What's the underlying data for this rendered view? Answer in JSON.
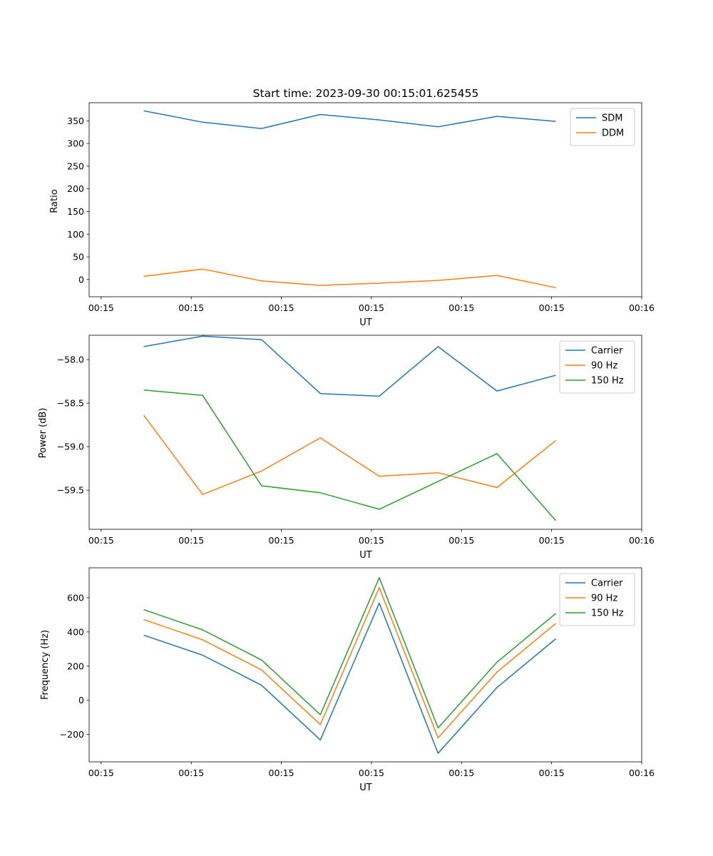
{
  "chart_data": [
    {
      "type": "line",
      "title": "Start time: 2023-09-30 00:15:01.625455",
      "xlabel": "UT",
      "ylabel": "Ratio",
      "xlim": [
        -0.2,
        9.0
      ],
      "ylim": [
        -38,
        390
      ],
      "x_ticks": [
        0,
        1.5,
        3,
        4.5,
        6,
        7.5,
        9
      ],
      "x_tick_labels": [
        "00:15",
        "00:15",
        "00:15",
        "00:15",
        "00:15",
        "00:15",
        "00:16"
      ],
      "y_ticks": [
        0,
        50,
        100,
        150,
        200,
        250,
        300,
        350
      ],
      "y_tick_labels": [
        "0",
        "50",
        "100",
        "150",
        "200",
        "250",
        "300",
        "350"
      ],
      "grid": false,
      "legend_position": "top-right",
      "x": [
        0.71,
        1.69,
        2.67,
        3.65,
        4.63,
        5.61,
        6.59,
        7.57
      ],
      "series": [
        {
          "name": "SDM",
          "color": "#1f77b4",
          "values": [
            372,
            347,
            333,
            364,
            352,
            337,
            360,
            349
          ]
        },
        {
          "name": "DDM",
          "color": "#ff7f0e",
          "values": [
            7,
            23,
            -3,
            -13,
            -8,
            -2,
            9,
            -18
          ]
        }
      ]
    },
    {
      "type": "line",
      "title": "",
      "xlabel": "UT",
      "ylabel": "Power (dB)",
      "xlim": [
        -0.2,
        9.0
      ],
      "ylim": [
        -59.95,
        -57.72
      ],
      "x_ticks": [
        0,
        1.5,
        3,
        4.5,
        6,
        7.5,
        9
      ],
      "x_tick_labels": [
        "00:15",
        "00:15",
        "00:15",
        "00:15",
        "00:15",
        "00:15",
        "00:16"
      ],
      "y_ticks": [
        -59.5,
        -59.0,
        -58.5,
        -58.0
      ],
      "y_tick_labels": [
        "−59.5",
        "−59.0",
        "−58.5",
        "−58.0"
      ],
      "grid": false,
      "legend_position": "top-right",
      "x": [
        0.71,
        1.69,
        2.67,
        3.65,
        4.63,
        5.61,
        6.59,
        7.57
      ],
      "series": [
        {
          "name": "Carrier",
          "color": "#1f77b4",
          "values": [
            -57.85,
            -57.73,
            -57.77,
            -58.39,
            -58.42,
            -57.85,
            -58.36,
            -58.18
          ]
        },
        {
          "name": "90 Hz",
          "color": "#ff7f0e",
          "values": [
            -58.64,
            -59.55,
            -59.28,
            -58.9,
            -59.34,
            -59.3,
            -59.47,
            -58.93
          ]
        },
        {
          "name": "150 Hz",
          "color": "#2ca02c",
          "values": [
            -58.35,
            -58.41,
            -59.45,
            -59.53,
            -59.72,
            -59.4,
            -59.08,
            -59.85
          ]
        }
      ]
    },
    {
      "type": "line",
      "title": "",
      "xlabel": "UT",
      "ylabel": "Frequency (Hz)",
      "xlim": [
        -0.2,
        9.0
      ],
      "ylim": [
        -360,
        775
      ],
      "x_ticks": [
        0,
        1.5,
        3,
        4.5,
        6,
        7.5,
        9
      ],
      "x_tick_labels": [
        "00:15",
        "00:15",
        "00:15",
        "00:15",
        "00:15",
        "00:15",
        "00:16"
      ],
      "y_ticks": [
        -200,
        0,
        200,
        400,
        600
      ],
      "y_tick_labels": [
        "−200",
        "0",
        "200",
        "400",
        "600"
      ],
      "grid": false,
      "legend_position": "top-right",
      "x": [
        0.71,
        1.69,
        2.67,
        3.65,
        4.63,
        5.61,
        6.59,
        7.57
      ],
      "series": [
        {
          "name": "Carrier",
          "color": "#1f77b4",
          "values": [
            381,
            264,
            88,
            -232,
            569,
            -310,
            75,
            360
          ]
        },
        {
          "name": "90 Hz",
          "color": "#ff7f0e",
          "values": [
            472,
            354,
            178,
            -142,
            659,
            -220,
            165,
            450
          ]
        },
        {
          "name": "150 Hz",
          "color": "#2ca02c",
          "values": [
            530,
            412,
            236,
            -84,
            717,
            -162,
            223,
            508
          ]
        }
      ]
    }
  ]
}
